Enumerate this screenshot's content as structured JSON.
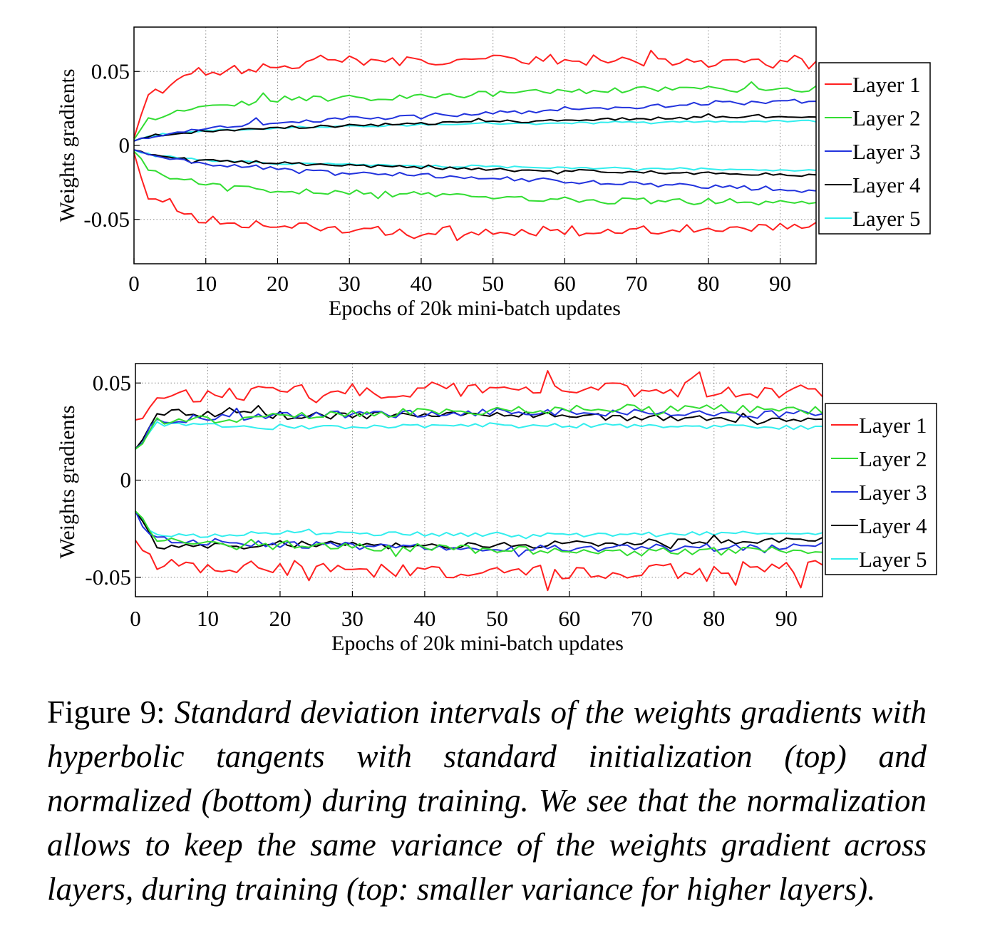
{
  "figure": {
    "caption": {
      "label": "Figure 9:",
      "text": "Standard deviation intervals of the weights gradients with hyperbolic tangents with standard initialization (top) and normalized (bottom) during training.  We see that the normalization allows to keep the same variance of the weights gradient across layers, during training (top: smaller variance for higher layers)."
    }
  },
  "chart_data": [
    {
      "type": "line",
      "xlabel": "Epochs of 20k mini-batch updates",
      "ylabel": "Weights gradients",
      "xlim": [
        0,
        95
      ],
      "ylim": [
        -0.08,
        0.08
      ],
      "xticks": [
        0,
        10,
        20,
        30,
        40,
        50,
        60,
        70,
        80,
        90
      ],
      "yticks": [
        -0.05,
        0,
        0.05
      ],
      "ytick_labels": [
        "-0.05",
        "0",
        "0.05"
      ],
      "grid": true,
      "legend_position": "right",
      "series": [
        {
          "name": "Layer 1",
          "color": "#ff2020",
          "base_start": 0.005,
          "levels": [
            [
              0,
              0.005
            ],
            [
              2,
              0.034
            ],
            [
              5,
              0.039
            ],
            [
              9,
              0.05
            ],
            [
              15,
              0.052
            ],
            [
              30,
              0.057
            ],
            [
              50,
              0.058
            ],
            [
              60,
              0.058
            ],
            [
              95,
              0.055
            ]
          ]
        },
        {
          "name": "Layer 2",
          "color": "#33dd33",
          "base_start": 0.004,
          "levels": [
            [
              0,
              0.004
            ],
            [
              2,
              0.017
            ],
            [
              5,
              0.021
            ],
            [
              10,
              0.026
            ],
            [
              20,
              0.031
            ],
            [
              40,
              0.033
            ],
            [
              60,
              0.037
            ],
            [
              80,
              0.038
            ],
            [
              95,
              0.038
            ]
          ]
        },
        {
          "name": "Layer 3",
          "color": "#2233dd",
          "base_start": 0.003,
          "levels": [
            [
              0,
              0.003
            ],
            [
              3,
              0.007
            ],
            [
              10,
              0.012
            ],
            [
              20,
              0.016
            ],
            [
              40,
              0.02
            ],
            [
              60,
              0.024
            ],
            [
              80,
              0.028
            ],
            [
              95,
              0.03
            ]
          ]
        },
        {
          "name": "Layer 4",
          "color": "#000000",
          "base_start": 0.003,
          "levels": [
            [
              0,
              0.003
            ],
            [
              3,
              0.007
            ],
            [
              10,
              0.01
            ],
            [
              20,
              0.012
            ],
            [
              40,
              0.015
            ],
            [
              60,
              0.017
            ],
            [
              80,
              0.019
            ],
            [
              95,
              0.02
            ]
          ]
        },
        {
          "name": "Layer 5",
          "color": "#33eeee",
          "base_start": 0.003,
          "levels": [
            [
              0,
              0.003
            ],
            [
              3,
              0.007
            ],
            [
              10,
              0.01
            ],
            [
              20,
              0.012
            ],
            [
              40,
              0.014
            ],
            [
              60,
              0.015
            ],
            [
              80,
              0.016
            ],
            [
              95,
              0.017
            ]
          ]
        }
      ]
    },
    {
      "type": "line",
      "xlabel": "Epochs of 20k mini-batch updates",
      "ylabel": "Weights gradients",
      "xlim": [
        0,
        95
      ],
      "ylim": [
        -0.06,
        0.06
      ],
      "xticks": [
        0,
        10,
        20,
        30,
        40,
        50,
        60,
        70,
        80,
        90
      ],
      "yticks": [
        -0.05,
        0,
        0.05
      ],
      "ytick_labels": [
        "-0.05",
        "0",
        "0.05"
      ],
      "grid": true,
      "legend_position": "right",
      "series": [
        {
          "name": "Layer 1",
          "color": "#ff2020",
          "levels": [
            [
              0,
              0.031
            ],
            [
              3,
              0.044
            ],
            [
              20,
              0.045
            ],
            [
              50,
              0.047
            ],
            [
              70,
              0.047
            ],
            [
              95,
              0.045
            ]
          ]
        },
        {
          "name": "Layer 2",
          "color": "#33dd33",
          "levels": [
            [
              0,
              0.016
            ],
            [
              3,
              0.03
            ],
            [
              20,
              0.033
            ],
            [
              50,
              0.036
            ],
            [
              70,
              0.037
            ],
            [
              95,
              0.036
            ]
          ]
        },
        {
          "name": "Layer 3",
          "color": "#2233dd",
          "levels": [
            [
              0,
              0.016
            ],
            [
              3,
              0.031
            ],
            [
              20,
              0.033
            ],
            [
              50,
              0.035
            ],
            [
              70,
              0.035
            ],
            [
              95,
              0.034
            ]
          ]
        },
        {
          "name": "Layer 4",
          "color": "#000000",
          "levels": [
            [
              0,
              0.016
            ],
            [
              3,
              0.035
            ],
            [
              20,
              0.033
            ],
            [
              50,
              0.034
            ],
            [
              70,
              0.032
            ],
            [
              95,
              0.031
            ]
          ]
        },
        {
          "name": "Layer 5",
          "color": "#33eeee",
          "levels": [
            [
              0,
              0.016
            ],
            [
              3,
              0.029
            ],
            [
              20,
              0.027
            ],
            [
              50,
              0.028
            ],
            [
              70,
              0.028
            ],
            [
              95,
              0.027
            ]
          ]
        }
      ]
    }
  ]
}
